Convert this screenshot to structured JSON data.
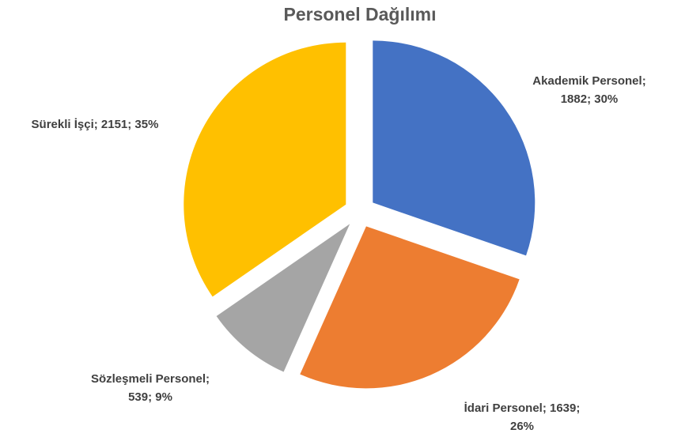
{
  "chart_data": {
    "type": "pie",
    "title": "Personel Dağılımı",
    "values": [
      1882,
      1639,
      539,
      2151
    ],
    "value_labels": [
      [
        "Akademik Personel;",
        "1882; 30%"
      ],
      [
        "İdari Personel; 1639;",
        "26%"
      ],
      [
        "Sözleşmeli Personel;",
        "539; 9%"
      ],
      [
        "Sürekli İşçi; 2151; 35%"
      ]
    ],
    "colors": [
      "#4472c4",
      "#ed7d31",
      "#a5a5a5",
      "#ffc000"
    ]
  }
}
